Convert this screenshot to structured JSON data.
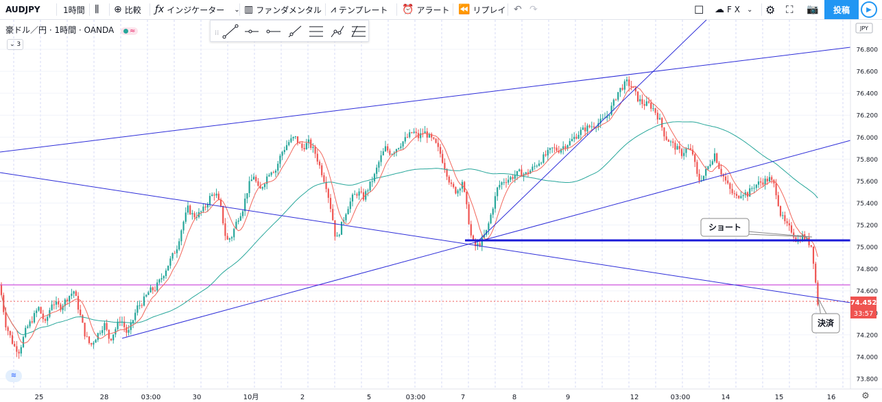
{
  "toolbar": {
    "symbol": "AUDJPY",
    "interval": "1時間",
    "compare": "比較",
    "indicators": "インジケーター",
    "fundamentals": "ファンダメンタル",
    "templates": "テンプレート",
    "alert": "アラート",
    "replay": "リプレイ",
    "fx": "F X",
    "post": "投稿"
  },
  "legend": {
    "title": "豪ドル／円 · 1時間 · OANDA",
    "collapse": "3"
  },
  "chart_data": {
    "type": "candlestick",
    "symbol": "AUDJPY",
    "currency": "JPY",
    "last_price": "74.452",
    "countdown": "33:57",
    "x_tick_labels": [
      "25",
      "28",
      "03:00",
      "30",
      "10月",
      "2",
      "5",
      "03:00",
      "7",
      "8",
      "9",
      "12",
      "03:00",
      "14",
      "15",
      "16"
    ],
    "y_ticks": [
      "76.800",
      "76.600",
      "76.400",
      "76.200",
      "76.000",
      "75.800",
      "75.600",
      "75.400",
      "75.200",
      "75.000",
      "74.800",
      "74.600",
      "74.400",
      "74.200",
      "74.000",
      "73.800"
    ],
    "ylim": [
      73.75,
      76.9
    ],
    "price_path": [
      [
        0,
        74.65
      ],
      [
        8,
        74.3
      ],
      [
        20,
        74.1
      ],
      [
        28,
        74.05
      ],
      [
        38,
        74.25
      ],
      [
        48,
        74.35
      ],
      [
        56,
        74.45
      ],
      [
        66,
        74.3
      ],
      [
        76,
        74.5
      ],
      [
        88,
        74.45
      ],
      [
        100,
        74.55
      ],
      [
        108,
        74.6
      ],
      [
        116,
        74.4
      ],
      [
        124,
        74.2
      ],
      [
        132,
        74.1
      ],
      [
        142,
        74.2
      ],
      [
        152,
        74.3
      ],
      [
        160,
        74.15
      ],
      [
        168,
        74.25
      ],
      [
        176,
        74.35
      ],
      [
        186,
        74.2
      ],
      [
        192,
        74.3
      ],
      [
        200,
        74.45
      ],
      [
        208,
        74.5
      ],
      [
        218,
        74.6
      ],
      [
        226,
        74.62
      ],
      [
        234,
        74.7
      ],
      [
        242,
        74.8
      ],
      [
        250,
        74.9
      ],
      [
        258,
        75.0
      ],
      [
        266,
        75.2
      ],
      [
        274,
        75.35
      ],
      [
        282,
        75.28
      ],
      [
        290,
        75.3
      ],
      [
        298,
        75.35
      ],
      [
        306,
        75.45
      ],
      [
        314,
        75.5
      ],
      [
        322,
        75.35
      ],
      [
        330,
        75.05
      ],
      [
        338,
        75.1
      ],
      [
        346,
        75.25
      ],
      [
        354,
        75.35
      ],
      [
        362,
        75.55
      ],
      [
        370,
        75.65
      ],
      [
        378,
        75.5
      ],
      [
        386,
        75.6
      ],
      [
        394,
        75.7
      ],
      [
        402,
        75.7
      ],
      [
        410,
        75.85
      ],
      [
        420,
        75.95
      ],
      [
        430,
        76.0
      ],
      [
        440,
        75.9
      ],
      [
        450,
        75.95
      ],
      [
        460,
        75.85
      ],
      [
        468,
        75.7
      ],
      [
        476,
        75.55
      ],
      [
        484,
        75.3
      ],
      [
        490,
        75.05
      ],
      [
        498,
        75.2
      ],
      [
        506,
        75.35
      ],
      [
        514,
        75.45
      ],
      [
        522,
        75.5
      ],
      [
        530,
        75.45
      ],
      [
        538,
        75.55
      ],
      [
        546,
        75.65
      ],
      [
        554,
        75.8
      ],
      [
        562,
        75.9
      ],
      [
        570,
        75.85
      ],
      [
        578,
        75.9
      ],
      [
        586,
        75.95
      ],
      [
        594,
        76.0
      ],
      [
        602,
        76.05
      ],
      [
        610,
        76.0
      ],
      [
        618,
        76.05
      ],
      [
        626,
        76.0
      ],
      [
        634,
        75.95
      ],
      [
        642,
        75.85
      ],
      [
        650,
        75.7
      ],
      [
        658,
        75.55
      ],
      [
        666,
        75.5
      ],
      [
        674,
        75.6
      ],
      [
        682,
        75.3
      ],
      [
        688,
        75.05
      ],
      [
        694,
        75.0
      ],
      [
        702,
        75.05
      ],
      [
        710,
        75.15
      ],
      [
        718,
        75.35
      ],
      [
        726,
        75.55
      ],
      [
        734,
        75.6
      ],
      [
        742,
        75.62
      ],
      [
        750,
        75.65
      ],
      [
        758,
        75.68
      ],
      [
        766,
        75.66
      ],
      [
        774,
        75.7
      ],
      [
        782,
        75.75
      ],
      [
        790,
        75.8
      ],
      [
        798,
        75.85
      ],
      [
        806,
        75.9
      ],
      [
        814,
        75.88
      ],
      [
        822,
        75.92
      ],
      [
        830,
        75.95
      ],
      [
        838,
        76.0
      ],
      [
        846,
        76.05
      ],
      [
        854,
        76.08
      ],
      [
        862,
        76.1
      ],
      [
        870,
        76.12
      ],
      [
        878,
        76.15
      ],
      [
        886,
        76.2
      ],
      [
        894,
        76.3
      ],
      [
        900,
        76.4
      ],
      [
        906,
        76.45
      ],
      [
        914,
        76.5
      ],
      [
        922,
        76.45
      ],
      [
        930,
        76.35
      ],
      [
        938,
        76.3
      ],
      [
        946,
        76.3
      ],
      [
        954,
        76.25
      ],
      [
        962,
        76.15
      ],
      [
        970,
        76.0
      ],
      [
        978,
        75.95
      ],
      [
        986,
        75.9
      ],
      [
        994,
        75.85
      ],
      [
        1002,
        75.9
      ],
      [
        1010,
        75.85
      ],
      [
        1018,
        75.6
      ],
      [
        1026,
        75.65
      ],
      [
        1034,
        75.75
      ],
      [
        1042,
        75.85
      ],
      [
        1050,
        75.7
      ],
      [
        1058,
        75.6
      ],
      [
        1066,
        75.5
      ],
      [
        1074,
        75.45
      ],
      [
        1082,
        75.5
      ],
      [
        1090,
        75.48
      ],
      [
        1098,
        75.55
      ],
      [
        1106,
        75.58
      ],
      [
        1114,
        75.6
      ],
      [
        1122,
        75.62
      ],
      [
        1130,
        75.55
      ],
      [
        1138,
        75.3
      ],
      [
        1146,
        75.2
      ],
      [
        1154,
        75.15
      ],
      [
        1162,
        75.05
      ],
      [
        1170,
        75.1
      ],
      [
        1178,
        75.05
      ],
      [
        1184,
        75.0
      ],
      [
        1188,
        74.75
      ],
      [
        1192,
        74.5
      ],
      [
        1194,
        74.45
      ]
    ],
    "annotations": [
      "ショート",
      "決済"
    ],
    "horizontal_levels": [
      75.0,
      74.6
    ]
  },
  "colors": {
    "accent": "#2196f3",
    "candle_up": "#26a69a",
    "candle_down": "#ef5350",
    "trendline": "#2b2bd8",
    "ma_short": "#f2655a",
    "ma_long": "#26a69a",
    "level_line": "#c026d3",
    "price_label": "#ef5350"
  }
}
